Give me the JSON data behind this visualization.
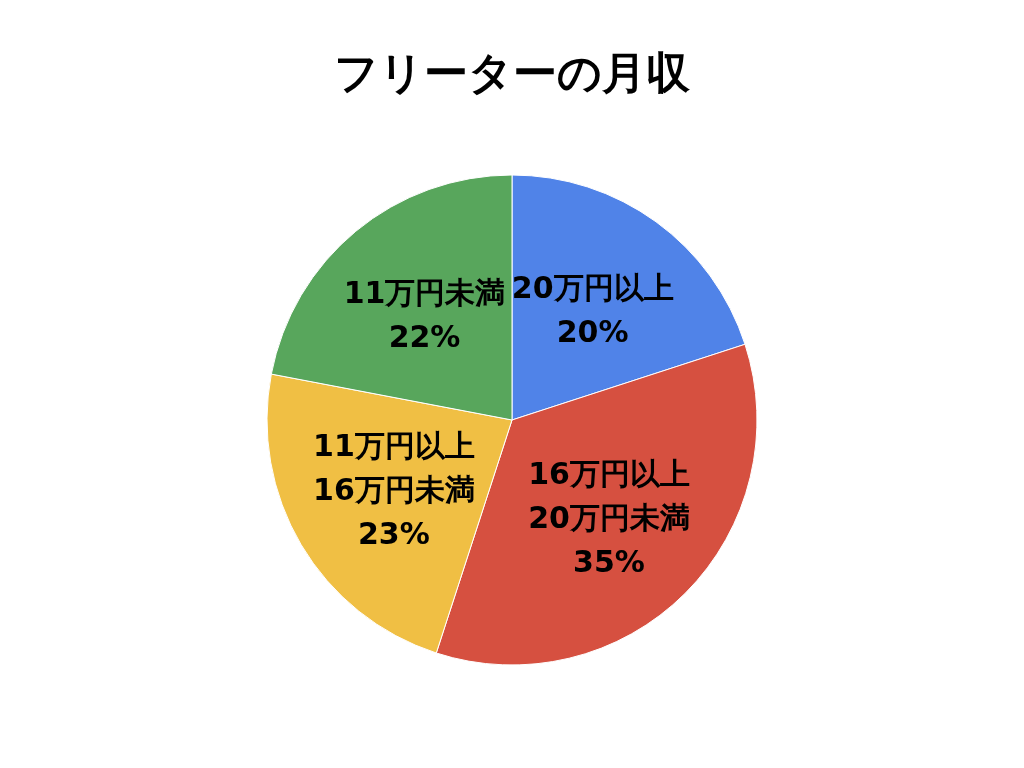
{
  "chart_data": {
    "type": "pie",
    "title": "フリーターの月収",
    "categories": [
      "20万円以上",
      "16万円以上 20万円未満",
      "11万円以上 16万円未満",
      "11万円未満"
    ],
    "values": [
      20,
      35,
      23,
      22
    ],
    "value_labels": [
      "20%",
      "35%",
      "23%",
      "22%"
    ],
    "colors": [
      "#5083e8",
      "#d65040",
      "#f0bf44",
      "#58a65c"
    ]
  }
}
